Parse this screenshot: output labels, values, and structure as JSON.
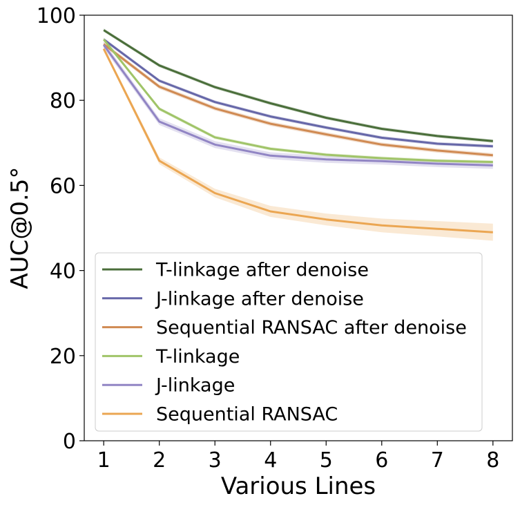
{
  "chart_data": {
    "type": "line",
    "xlabel": "Various Lines",
    "ylabel": "AUC@0.5°",
    "x": [
      1,
      2,
      3,
      4,
      5,
      6,
      7,
      8
    ],
    "xlim": [
      0.65,
      8.35
    ],
    "ylim": [
      0,
      100
    ],
    "yticks": [
      0,
      20,
      40,
      60,
      80,
      100
    ],
    "grid": false,
    "legend_position": "lower-left",
    "series": [
      {
        "name": "T-linkage after denoise",
        "color": "#4a6e3a",
        "values": [
          96.5,
          88.2,
          83.1,
          79.3,
          75.9,
          73.3,
          71.6,
          70.4
        ],
        "band": 0.4
      },
      {
        "name": "J-linkage after denoise",
        "color": "#6667a8",
        "values": [
          94.3,
          84.6,
          79.6,
          76.2,
          73.6,
          71.2,
          69.8,
          69.2
        ],
        "band": 0.4
      },
      {
        "name": "Sequential RANSAC after denoise",
        "color": "#d08a52",
        "values": [
          93.2,
          83.2,
          78.1,
          74.5,
          72.0,
          69.6,
          68.2,
          67.1
        ],
        "band": 0.5
      },
      {
        "name": "T-linkage",
        "color": "#a0c468",
        "values": [
          94.3,
          78.0,
          71.3,
          68.6,
          67.2,
          66.4,
          65.8,
          65.5
        ],
        "band": 0.4
      },
      {
        "name": "J-linkage",
        "color": "#9185c4",
        "values": [
          93.0,
          75.0,
          69.6,
          67.0,
          66.1,
          65.7,
          65.1,
          64.7
        ],
        "band": 0.8
      },
      {
        "name": "Sequential RANSAC",
        "color": "#eba652",
        "values": [
          92.1,
          65.8,
          58.2,
          53.9,
          52.0,
          50.6,
          49.8,
          49.0
        ],
        "band": [
          0.5,
          0.8,
          1.0,
          1.3,
          1.4,
          1.6,
          1.8,
          2.0
        ]
      }
    ]
  }
}
